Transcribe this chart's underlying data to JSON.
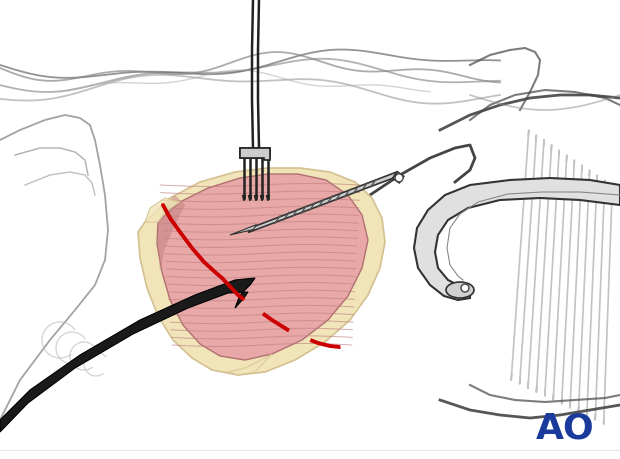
{
  "bg_color": "#ffffff",
  "outline_color": "#444444",
  "outline_thin": "#666666",
  "muscle_fill": "#e8a8a8",
  "muscle_line_color": "#c08080",
  "fat_fill": "#f0e4b8",
  "fat_edge": "#d4c090",
  "skin_fill": "#f0f0f0",
  "red_color": "#cc0000",
  "ao_color": "#1a3a9c",
  "ao_text": "AO",
  "retractor_fill": "#e8e8e8",
  "instrument_fill": "#cccccc"
}
